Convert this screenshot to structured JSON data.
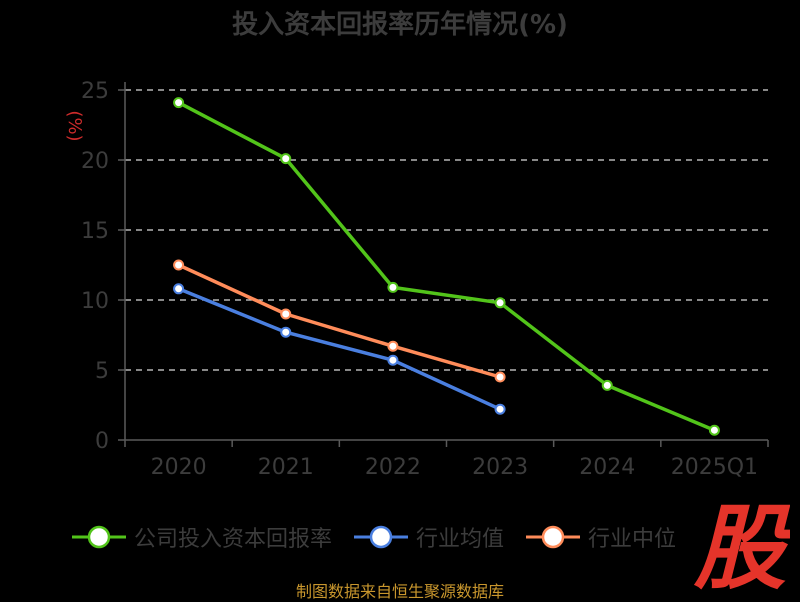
{
  "title": "投入资本回报率历年情况(%)",
  "source": "制图数据来自恒生聚源数据库",
  "logo_text": "股",
  "colors": {
    "background": "#000000",
    "axis": "#5a5a5a",
    "grid": "#d9d9d9",
    "text": "#3c3c3c",
    "unit": "#cc2b2b",
    "logo": "#e5342a",
    "source": "#c8962d"
  },
  "chart_data": {
    "type": "line",
    "title": "投入资本回报率历年情况(%)",
    "ylabel": "(%)",
    "xlabel": "",
    "categories": [
      "2020",
      "2021",
      "2022",
      "2023",
      "2024",
      "2025Q1"
    ],
    "ylim": [
      0,
      25
    ],
    "yticks": [
      0,
      5,
      10,
      15,
      20,
      25
    ],
    "grid": true,
    "legend_position": "bottom",
    "series": [
      {
        "name": "公司投入资本回报率",
        "color": "#52c41a",
        "values": [
          24.1,
          20.1,
          10.9,
          9.8,
          3.9,
          0.7
        ]
      },
      {
        "name": "行业均值",
        "color": "#4a7fe0",
        "values": [
          10.8,
          7.7,
          5.7,
          2.2,
          null,
          null
        ]
      },
      {
        "name": "行业中位",
        "color": "#ff8c5a",
        "values": [
          12.5,
          9.0,
          6.7,
          4.5,
          null,
          null
        ]
      }
    ]
  }
}
